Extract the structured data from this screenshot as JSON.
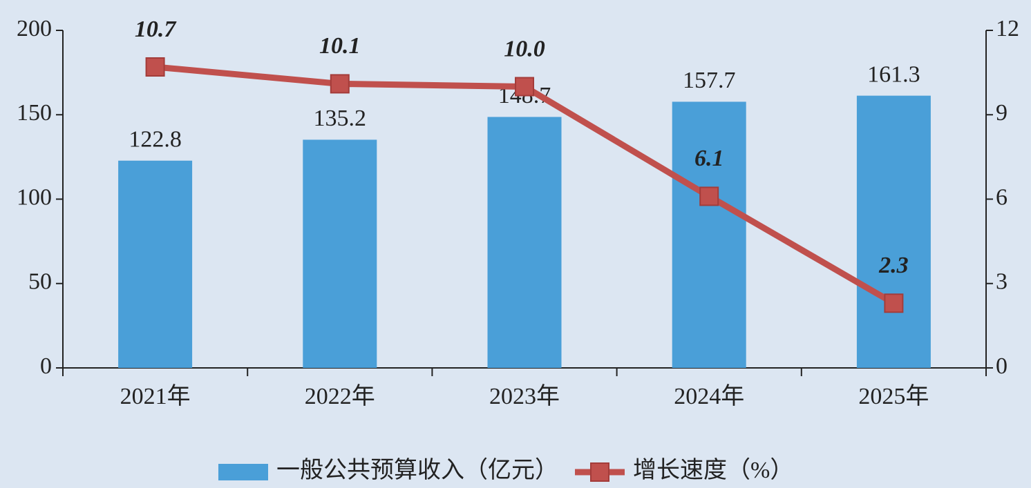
{
  "chart_data": {
    "type": "bar",
    "categories": [
      "2021年",
      "2022年",
      "2023年",
      "2024年",
      "2025年"
    ],
    "series": [
      {
        "name": "一般公共预算收入（亿元）",
        "type": "bar",
        "color": "#4a9fd8",
        "values": [
          122.8,
          135.2,
          148.7,
          157.7,
          161.3
        ]
      },
      {
        "name": "增长速度（%）",
        "type": "line",
        "axis": "y2",
        "color": "#c0504d",
        "values": [
          10.7,
          10.1,
          10.0,
          6.1,
          2.3
        ],
        "value_labels": [
          "10.7",
          "10.1",
          "10.0",
          "6.1",
          "2.3"
        ]
      }
    ],
    "ylim": [
      0,
      200
    ],
    "yticks": [
      0,
      50,
      100,
      150,
      200
    ],
    "y2lim": [
      0,
      12
    ],
    "y2ticks": [
      0,
      3,
      6,
      9,
      12
    ],
    "grid": false,
    "legend": "bottom"
  }
}
